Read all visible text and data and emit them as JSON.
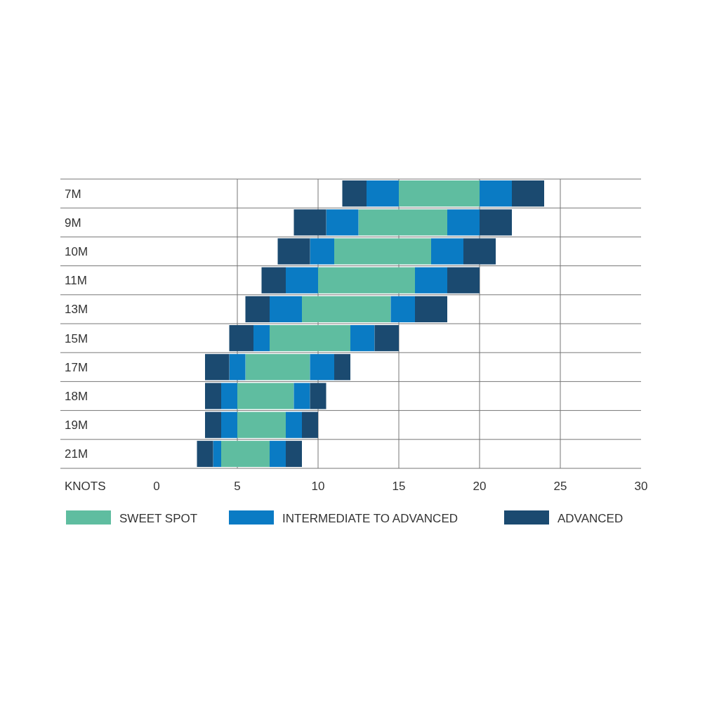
{
  "chart_data": {
    "type": "bar",
    "orientation": "horizontal",
    "xlabel": "KNOTS",
    "categories": [
      "7M",
      "9M",
      "10M",
      "11M",
      "13M",
      "15M",
      "17M",
      "18M",
      "19M",
      "21M"
    ],
    "series": [
      {
        "name": "SWEET SPOT",
        "color": "#5fbda0",
        "base": [
          15,
          12.5,
          11,
          10,
          9,
          7,
          5.5,
          5,
          5,
          4
        ],
        "values": [
          5,
          5.5,
          6,
          6,
          5.5,
          5,
          4,
          3.5,
          3,
          3
        ]
      },
      {
        "name": "INTERMEDIATE TO ADVANCED",
        "color": "#0a7bc4",
        "base": [
          13,
          10.5,
          9.5,
          8,
          7,
          6,
          4.5,
          4,
          4,
          3.5
        ],
        "values": [
          2,
          2,
          1.5,
          2,
          2,
          1,
          1,
          1,
          1,
          0.5
        ]
      },
      {
        "name": "ADVANCED",
        "color": "#1b4a70",
        "base": [
          11.5,
          8.5,
          7.5,
          6.5,
          5.5,
          4.5,
          3,
          3,
          3,
          2.5
        ],
        "values": [
          1.5,
          2,
          2,
          1.5,
          1.5,
          1.5,
          1.5,
          1,
          1,
          1
        ]
      },
      {
        "color": "#0a7bc4",
        "base": [
          20,
          18,
          17,
          16,
          14.5,
          12,
          9.5,
          8.5,
          8,
          7
        ],
        "values": [
          2,
          2,
          2,
          2,
          1.5,
          1.5,
          1.5,
          1,
          1,
          1
        ]
      },
      {
        "color": "#1b4a70",
        "base": [
          22,
          20,
          19,
          18,
          16,
          13.5,
          11,
          9.5,
          9,
          8
        ],
        "values": [
          2,
          2,
          2,
          2,
          2,
          1.5,
          1,
          1,
          1,
          1
        ]
      }
    ],
    "xlim": [
      0,
      30
    ],
    "xticks": [
      0,
      5,
      10,
      15,
      20,
      25,
      30
    ],
    "grid": "x",
    "legend": "bottom"
  }
}
